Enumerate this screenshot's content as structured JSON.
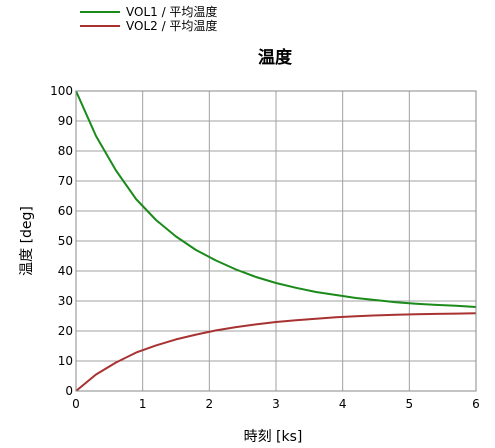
{
  "chart_data": {
    "type": "line",
    "title": "温度",
    "xlabel": "時刻 [ks]",
    "ylabel": "温度 [deg]",
    "xlim": [
      0,
      6
    ],
    "ylim": [
      0,
      100
    ],
    "xticks": [
      "0",
      "1",
      "2",
      "3",
      "4",
      "5",
      "6"
    ],
    "yticks": [
      "0",
      "10",
      "20",
      "30",
      "40",
      "50",
      "60",
      "70",
      "80",
      "90",
      "100"
    ],
    "grid": true,
    "legend_position": "top-left",
    "series": [
      {
        "name": "VOL1 / 平均温度",
        "color": "#1a8a1a",
        "x": [
          0,
          0.3,
          0.6,
          0.9,
          1.2,
          1.5,
          1.8,
          2.1,
          2.4,
          2.7,
          3.0,
          3.3,
          3.6,
          3.9,
          4.2,
          4.5,
          4.8,
          5.1,
          5.4,
          5.7,
          6.0
        ],
        "y": [
          100,
          85,
          73.5,
          64,
          57,
          51.5,
          47,
          43.5,
          40.5,
          38,
          36,
          34.4,
          33,
          32,
          31,
          30.3,
          29.6,
          29.1,
          28.7,
          28.4,
          28
        ]
      },
      {
        "name": "VOL2 / 平均温度",
        "color": "#a83232",
        "x": [
          0,
          0.3,
          0.6,
          0.9,
          1.2,
          1.5,
          1.8,
          2.1,
          2.4,
          2.7,
          3.0,
          3.3,
          3.6,
          3.9,
          4.2,
          4.5,
          4.8,
          5.1,
          5.4,
          5.7,
          6.0
        ],
        "y": [
          0,
          5.5,
          9.5,
          12.8,
          15.2,
          17.2,
          18.8,
          20.2,
          21.3,
          22.2,
          23,
          23.6,
          24.1,
          24.6,
          24.9,
          25.2,
          25.4,
          25.6,
          25.7,
          25.8,
          25.9
        ]
      }
    ]
  }
}
